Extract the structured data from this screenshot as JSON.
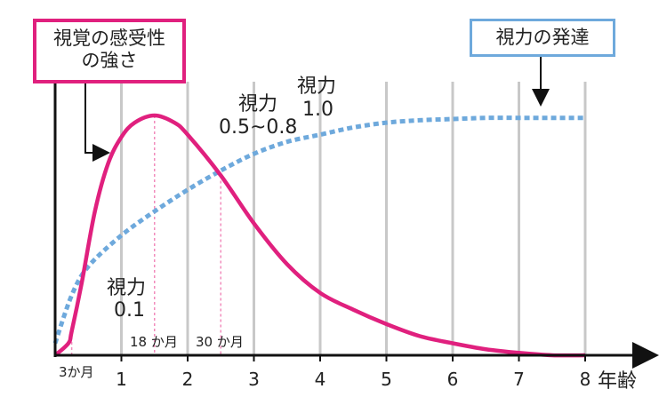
{
  "chart_data": {
    "type": "line",
    "x_axis": {
      "unit_label": "年齢",
      "ticks": [
        "1",
        "2",
        "3",
        "4",
        "5",
        "6",
        "7",
        "8"
      ],
      "range": [
        0,
        8
      ]
    },
    "legend_boxes": {
      "sensitivity": {
        "line1": "視覚の感受性",
        "line2": "の強さ"
      },
      "development": {
        "text": "視力の発達"
      }
    },
    "series": [
      {
        "name": "視覚の感受性の強さ",
        "style": "solid",
        "color": "#e0207e",
        "x": [
          0,
          0.2,
          0.25,
          0.4,
          0.6,
          0.8,
          1.0,
          1.2,
          1.5,
          1.8,
          2.0,
          2.5,
          3.0,
          3.5,
          4.0,
          4.5,
          5.0,
          5.5,
          6.0,
          6.5,
          7.0,
          7.5,
          8.0
        ],
        "y": [
          0.0,
          0.05,
          0.1,
          0.3,
          0.6,
          0.8,
          0.91,
          0.97,
          1.0,
          0.97,
          0.92,
          0.75,
          0.55,
          0.38,
          0.26,
          0.19,
          0.13,
          0.08,
          0.05,
          0.025,
          0.01,
          0.0,
          0.0
        ]
      },
      {
        "name": "視力の発達",
        "style": "dotted",
        "color": "#6ea9dc",
        "x": [
          0,
          0.25,
          0.5,
          1.0,
          1.5,
          2.0,
          2.5,
          3.0,
          3.5,
          4.0,
          4.5,
          5.0,
          5.5,
          6.0,
          6.5,
          7.0,
          7.5,
          8.0
        ],
        "y": [
          0.05,
          0.25,
          0.37,
          0.5,
          0.6,
          0.69,
          0.77,
          0.84,
          0.89,
          0.92,
          0.95,
          0.97,
          0.98,
          0.985,
          0.99,
          0.99,
          0.99,
          0.99
        ]
      }
    ],
    "markers": [
      {
        "x": 0.25,
        "label": "3か月"
      },
      {
        "x": 1.5,
        "label": "18 か月"
      },
      {
        "x": 2.5,
        "label": "30 か月"
      }
    ],
    "annotations": [
      {
        "line1": "視力",
        "line2": "0.1"
      },
      {
        "line1": "視力",
        "line2": "0.5~0.8"
      },
      {
        "line1": "視力",
        "line2": "1.0"
      }
    ],
    "grid": "vertical"
  }
}
